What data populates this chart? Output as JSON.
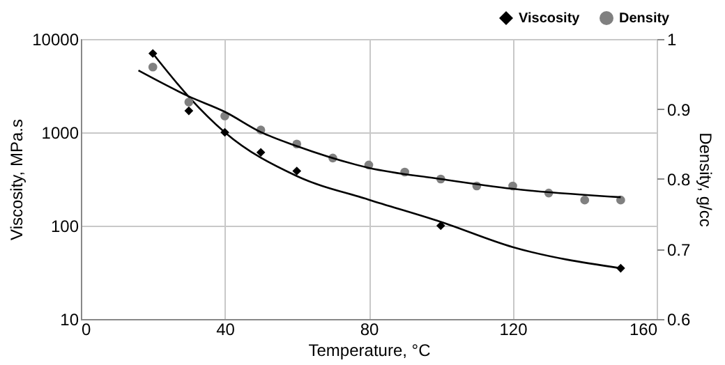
{
  "chart_data": {
    "type": "scatter",
    "xlabel": "Temperature, °C",
    "ylabel": "Viscosity, MPa.s",
    "y2label": "Density, g/cc",
    "xlim": [
      0,
      160
    ],
    "xticks": [
      0,
      40,
      80,
      120,
      160
    ],
    "ylim": [
      10,
      10000
    ],
    "yticks": [
      10,
      100,
      1000,
      10000
    ],
    "log": "y",
    "y2lim": [
      0.6,
      1
    ],
    "y2ticks": [
      0.6,
      0.7,
      0.8,
      0.9,
      1
    ],
    "grid": true,
    "legend": "top right",
    "series": [
      {
        "name": "Viscosity",
        "marker": "diamond",
        "color": "#000000",
        "x": [
          20,
          30,
          40,
          50,
          60,
          100,
          150
        ],
        "values": [
          7000,
          1700,
          1000,
          610,
          385,
          100,
          35
        ]
      },
      {
        "name": "Density",
        "marker": "circle",
        "color": "#808080",
        "axis": "y2",
        "x": [
          20,
          30,
          40,
          50,
          60,
          70,
          80,
          90,
          100,
          110,
          120,
          130,
          140,
          150
        ],
        "values": [
          0.96,
          0.91,
          0.89,
          0.87,
          0.85,
          0.83,
          0.82,
          0.81,
          0.8,
          0.79,
          0.79,
          0.78,
          0.77,
          0.77
        ]
      },
      {
        "type": "line",
        "line_style": "solid",
        "color": "#000000",
        "x": [
          20,
          30,
          40,
          60,
          80,
          100,
          120,
          150
        ],
        "values": [
          7000,
          2400,
          1000,
          340,
          190,
          110,
          59,
          35
        ]
      },
      {
        "type": "line",
        "line_style": "solid",
        "color": "#000000",
        "axis": "y2",
        "x": [
          16,
          30,
          40,
          50,
          60,
          80,
          100,
          120,
          150
        ],
        "values": [
          0.955,
          0.918,
          0.896,
          0.867,
          0.847,
          0.816,
          0.8,
          0.786,
          0.774
        ]
      }
    ]
  }
}
